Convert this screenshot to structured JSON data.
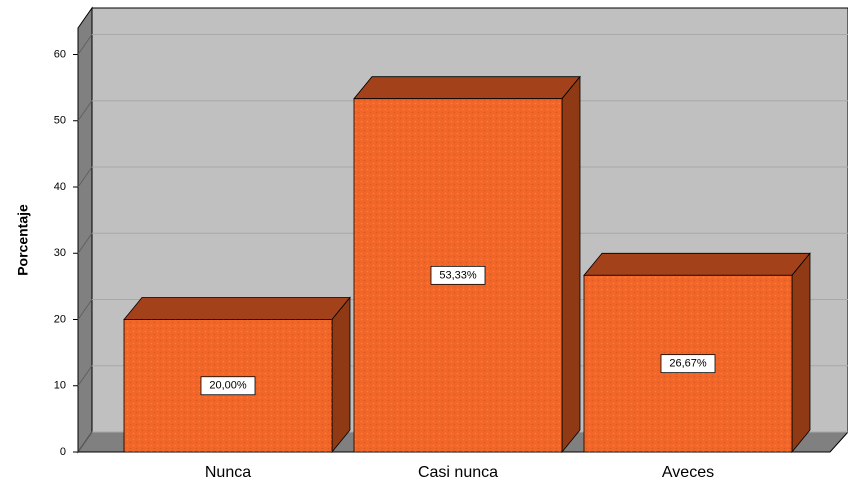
{
  "chart_data": {
    "type": "bar3d",
    "y_label": "Porcentaje",
    "categories": [
      "Nunca",
      "Casi nunca",
      "Aveces"
    ],
    "values": [
      20,
      53.33,
      26.67
    ],
    "value_labels": [
      "20,00%",
      "53,33%",
      "26,67%"
    ],
    "color": "#f26628",
    "ylim": [
      0,
      64
    ],
    "yticks": [
      0,
      10,
      20,
      30,
      40,
      50,
      60
    ],
    "grid": true
  }
}
